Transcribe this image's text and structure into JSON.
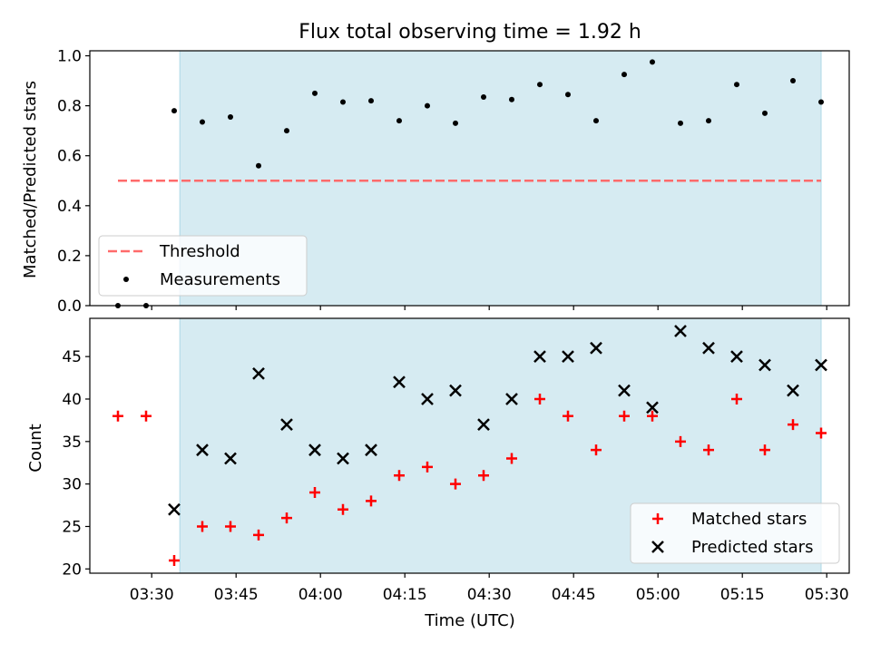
{
  "chart_data": [
    {
      "type": "scatter",
      "title": "Flux total observing time = 1.92 h",
      "ylabel": "Matched/Predicted stars",
      "xlabel": "",
      "ylim": [
        0,
        1.02
      ],
      "yticks": [
        0.0,
        0.2,
        0.4,
        0.6,
        0.8,
        1.0
      ],
      "ytick_labels": [
        "0.0",
        "0.2",
        "0.4",
        "0.6",
        "0.8",
        "1.0"
      ],
      "shaded_interval": [
        "03:35",
        "05:29"
      ],
      "shade_color": "#add8e6",
      "grid": false,
      "legend": {
        "position": "lower-left",
        "entries": [
          "Threshold",
          "Measurements"
        ]
      },
      "series": [
        {
          "name": "Threshold",
          "kind": "dashed-line",
          "color": "#ff6b6b",
          "x": [
            "03:24",
            "05:29"
          ],
          "y": [
            0.5,
            0.5
          ]
        },
        {
          "name": "Measurements",
          "kind": "dots",
          "color": "#000000",
          "x": [
            "03:24",
            "03:29",
            "03:34",
            "03:39",
            "03:44",
            "03:49",
            "03:54",
            "03:59",
            "04:04",
            "04:09",
            "04:14",
            "04:19",
            "04:24",
            "04:29",
            "04:34",
            "04:39",
            "04:44",
            "04:49",
            "04:54",
            "04:59",
            "05:04",
            "05:09",
            "05:14",
            "05:19",
            "05:24",
            "05:29"
          ],
          "y": [
            0.0,
            0.0,
            0.78,
            0.735,
            0.755,
            0.56,
            0.7,
            0.85,
            0.815,
            0.82,
            0.74,
            0.8,
            0.73,
            0.835,
            0.825,
            0.885,
            0.845,
            0.74,
            0.925,
            0.975,
            0.73,
            0.74,
            0.885,
            0.77,
            0.9,
            0.815
          ]
        }
      ]
    },
    {
      "type": "scatter",
      "title": "",
      "ylabel": "Count",
      "xlabel": "Time (UTC)",
      "ylim": [
        19.5,
        49.5
      ],
      "yticks": [
        20,
        25,
        30,
        35,
        40,
        45
      ],
      "ytick_labels": [
        "20",
        "25",
        "30",
        "35",
        "40",
        "45"
      ],
      "xticks": [
        "03:30",
        "03:45",
        "04:00",
        "04:15",
        "04:30",
        "04:45",
        "05:00",
        "05:15",
        "05:30"
      ],
      "xlim": [
        "03:19",
        "05:34"
      ],
      "shaded_interval": [
        "03:35",
        "05:29"
      ],
      "shade_color": "#add8e6",
      "grid": false,
      "legend": {
        "position": "lower-right",
        "entries": [
          "Matched stars",
          "Predicted stars"
        ]
      },
      "series": [
        {
          "name": "Matched stars",
          "kind": "plus",
          "color": "#ff0000",
          "x": [
            "03:24",
            "03:29",
            "03:34",
            "03:39",
            "03:44",
            "03:49",
            "03:54",
            "03:59",
            "04:04",
            "04:09",
            "04:14",
            "04:19",
            "04:24",
            "04:29",
            "04:34",
            "04:39",
            "04:44",
            "04:49",
            "04:54",
            "04:59",
            "05:04",
            "05:09",
            "05:14",
            "05:19",
            "05:24",
            "05:29"
          ],
          "y": [
            38,
            38,
            21,
            25,
            25,
            24,
            26,
            29,
            27,
            28,
            31,
            32,
            30,
            31,
            33,
            40,
            38,
            34,
            38,
            38,
            35,
            34,
            40,
            34,
            37,
            36
          ]
        },
        {
          "name": "Predicted stars",
          "kind": "x",
          "color": "#000000",
          "x": [
            "03:34",
            "03:39",
            "03:44",
            "03:49",
            "03:54",
            "03:59",
            "04:04",
            "04:09",
            "04:14",
            "04:19",
            "04:24",
            "04:29",
            "04:34",
            "04:39",
            "04:44",
            "04:49",
            "04:54",
            "04:59",
            "05:04",
            "05:09",
            "05:14",
            "05:19",
            "05:24",
            "05:29"
          ],
          "y": [
            27,
            34,
            33,
            43,
            37,
            34,
            33,
            34,
            42,
            40,
            41,
            37,
            40,
            45,
            45,
            46,
            41,
            39,
            48,
            46,
            45,
            44,
            41,
            44
          ]
        }
      ]
    }
  ]
}
